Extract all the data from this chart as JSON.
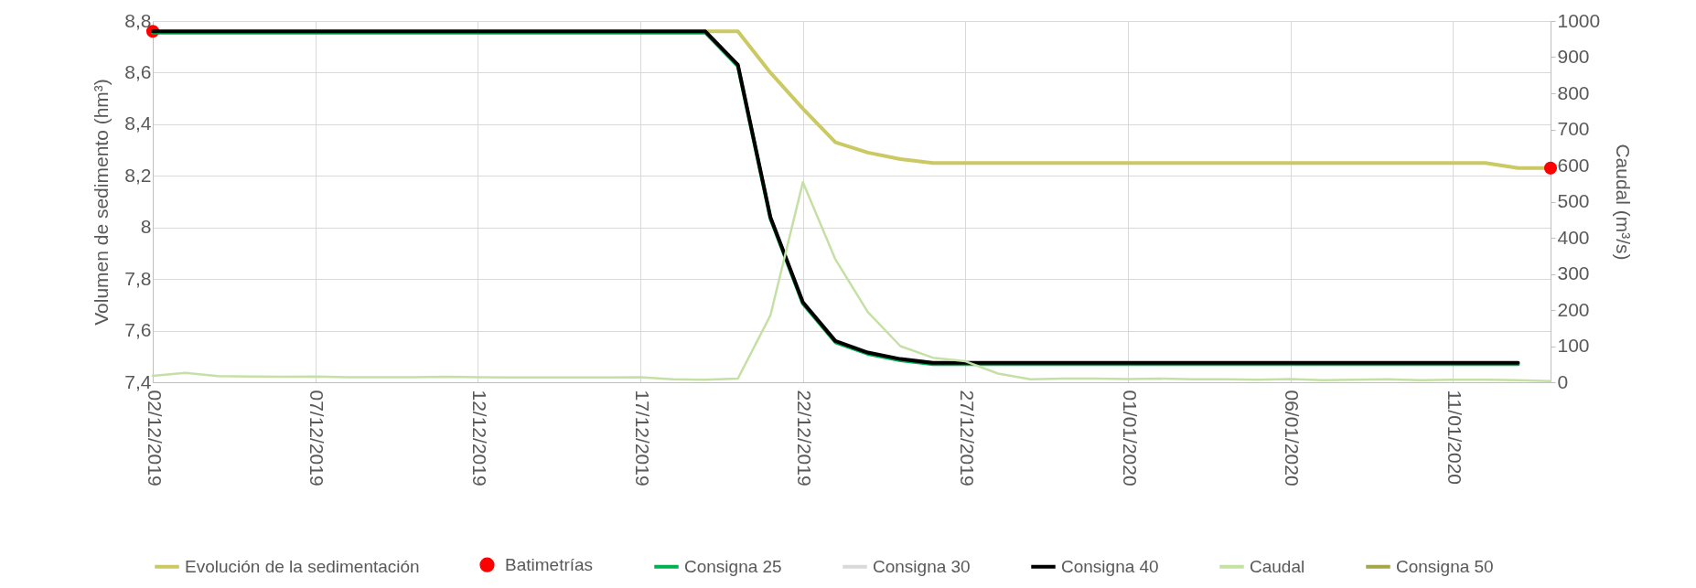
{
  "chart_data": {
    "type": "line",
    "ylabel": "Volumen de sedimento (hm³)",
    "y2label": "Caudal (m³/s)",
    "x": [
      "2019-12-02",
      "2019-12-03",
      "2019-12-04",
      "2019-12-05",
      "2019-12-06",
      "2019-12-07",
      "2019-12-08",
      "2019-12-09",
      "2019-12-10",
      "2019-12-11",
      "2019-12-12",
      "2019-12-13",
      "2019-12-14",
      "2019-12-15",
      "2019-12-16",
      "2019-12-17",
      "2019-12-18",
      "2019-12-19",
      "2019-12-20",
      "2019-12-21",
      "2019-12-22",
      "2019-12-23",
      "2019-12-24",
      "2019-12-25",
      "2019-12-26",
      "2019-12-27",
      "2019-12-28",
      "2019-12-29",
      "2019-12-30",
      "2019-12-31",
      "2020-01-01",
      "2020-01-02",
      "2020-01-03",
      "2020-01-04",
      "2020-01-05",
      "2020-01-06",
      "2020-01-07",
      "2020-01-08",
      "2020-01-09",
      "2020-01-10",
      "2020-01-11",
      "2020-01-12",
      "2020-01-13",
      "2020-01-14"
    ],
    "series": [
      {
        "name": "Evolución de la sedimentación",
        "color": "#cbc964",
        "values": [
          null,
          null,
          null,
          null,
          null,
          null,
          null,
          null,
          null,
          null,
          null,
          null,
          null,
          null,
          null,
          null,
          null,
          8.76,
          8.76,
          8.6,
          8.46,
          8.33,
          8.29,
          8.265,
          8.25,
          8.25,
          8.25,
          8.25,
          8.25,
          8.25,
          8.25,
          8.25,
          8.25,
          8.25,
          8.25,
          8.25,
          8.25,
          8.25,
          8.25,
          8.25,
          8.25,
          8.25,
          8.23,
          8.23
        ]
      },
      {
        "name": "Batimetrías",
        "type": "scatter",
        "marker": "circle",
        "color": "#ff0000",
        "x": [
          "2019-12-02",
          "2020-01-14"
        ],
        "values": [
          8.76,
          8.23
        ]
      },
      {
        "name": "Consigna 25",
        "color": "#00b050",
        "values": [
          8.755,
          8.755,
          8.755,
          8.755,
          8.755,
          8.755,
          8.755,
          8.755,
          8.755,
          8.755,
          8.755,
          8.755,
          8.755,
          8.755,
          8.755,
          8.755,
          8.755,
          8.755,
          8.625,
          8.035,
          7.705,
          7.555,
          7.51,
          7.485,
          7.47,
          7.47,
          7.47,
          7.47,
          7.47,
          7.47,
          7.47,
          7.47,
          7.47,
          7.47,
          7.47,
          7.47,
          7.47,
          7.47,
          7.47,
          7.47,
          7.47,
          7.47,
          7.47,
          null
        ]
      },
      {
        "name": "Consigna 30",
        "color": "#d9d9d9",
        "values": [
          null,
          null,
          null,
          null,
          null,
          null,
          null,
          null,
          null,
          null,
          null,
          null,
          null,
          null,
          null,
          null,
          null,
          null,
          null,
          null,
          null,
          null,
          null,
          null,
          null,
          null,
          null,
          null,
          null,
          null,
          null,
          null,
          null,
          null,
          null,
          null,
          null,
          null,
          null,
          null,
          null,
          null,
          null,
          null
        ]
      },
      {
        "name": "Consigna 40",
        "color": "#000000",
        "values": [
          8.76,
          8.76,
          8.76,
          8.76,
          8.76,
          8.76,
          8.76,
          8.76,
          8.76,
          8.76,
          8.76,
          8.76,
          8.76,
          8.76,
          8.76,
          8.76,
          8.76,
          8.76,
          8.63,
          8.04,
          7.71,
          7.56,
          7.515,
          7.49,
          7.475,
          7.475,
          7.475,
          7.475,
          7.475,
          7.475,
          7.475,
          7.475,
          7.475,
          7.475,
          7.475,
          7.475,
          7.475,
          7.475,
          7.475,
          7.475,
          7.475,
          7.475,
          7.475,
          null
        ]
      },
      {
        "name": "Caudal",
        "axis": "y2",
        "color": "#c5e0a5",
        "values": [
          18,
          26,
          17,
          16,
          15,
          16,
          14,
          14,
          14,
          15,
          14,
          13,
          13,
          13,
          13,
          14,
          8,
          7,
          10,
          185,
          554,
          340,
          194,
          100,
          68,
          58,
          24,
          8,
          10,
          10,
          9,
          10,
          8,
          8,
          7,
          9,
          6,
          7,
          8,
          6,
          7,
          7,
          6,
          3
        ]
      },
      {
        "name": "Consigna 50",
        "color": "#a5a54a",
        "values": [
          null,
          null,
          null,
          null,
          null,
          null,
          null,
          null,
          null,
          null,
          null,
          null,
          null,
          null,
          null,
          null,
          null,
          null,
          null,
          null,
          null,
          null,
          null,
          null,
          null,
          null,
          null,
          null,
          null,
          null,
          null,
          null,
          null,
          null,
          null,
          null,
          null,
          null,
          null,
          null,
          null,
          null,
          null,
          null
        ]
      }
    ],
    "xlim": [
      "2019-12-02",
      "2020-01-14"
    ],
    "xticks": [
      {
        "value": "2019-12-02",
        "label": "02/12/2019"
      },
      {
        "value": "2019-12-07",
        "label": "07/12/2019"
      },
      {
        "value": "2019-12-12",
        "label": "12/12/2019"
      },
      {
        "value": "2019-12-17",
        "label": "17/12/2019"
      },
      {
        "value": "2019-12-22",
        "label": "22/12/2019"
      },
      {
        "value": "2019-12-27",
        "label": "27/12/2019"
      },
      {
        "value": "2020-01-01",
        "label": "01/01/2020"
      },
      {
        "value": "2020-01-06",
        "label": "06/01/2020"
      },
      {
        "value": "2020-01-11",
        "label": "11/01/2020"
      }
    ],
    "ylim": [
      7.4,
      8.8
    ],
    "yticks": [
      {
        "value": 7.4,
        "label": "7,4"
      },
      {
        "value": 7.6,
        "label": "7,6"
      },
      {
        "value": 7.8,
        "label": "7,8"
      },
      8,
      {
        "value": 8.2,
        "label": "8,2"
      },
      {
        "value": 8.4,
        "label": "8,4"
      },
      {
        "value": 8.6,
        "label": "8,6"
      },
      {
        "value": 8.8,
        "label": "8,8"
      }
    ],
    "y2lim": [
      0,
      1000
    ],
    "y2ticks": [
      0,
      100,
      200,
      300,
      400,
      500,
      600,
      700,
      800,
      900,
      1000
    ],
    "grid": true,
    "legend": "bottom"
  }
}
